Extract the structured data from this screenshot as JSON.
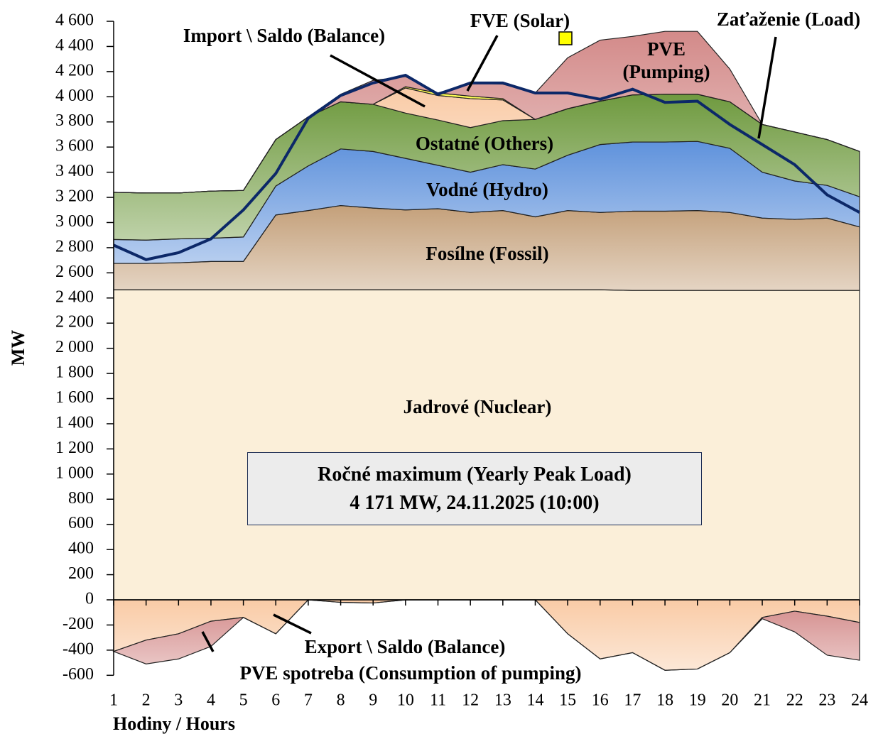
{
  "chart_data": {
    "type": "area",
    "y_label": "MW",
    "x_label": "Hodiny / Hours",
    "x": [
      1,
      2,
      3,
      4,
      5,
      6,
      7,
      8,
      9,
      10,
      11,
      12,
      13,
      14,
      15,
      16,
      17,
      18,
      19,
      20,
      21,
      22,
      23,
      24
    ],
    "xlim": [
      1,
      24
    ],
    "xticks": [
      1,
      2,
      3,
      4,
      5,
      6,
      7,
      8,
      9,
      10,
      11,
      12,
      13,
      14,
      15,
      16,
      17,
      18,
      19,
      20,
      21,
      22,
      23,
      24
    ],
    "ylim": [
      -600,
      4600
    ],
    "yticks": [
      -600,
      -400,
      -200,
      0,
      200,
      400,
      600,
      800,
      {
        "value": 1000,
        "label": "1 000"
      },
      {
        "value": 1200,
        "label": "1 200"
      },
      {
        "value": 1400,
        "label": "1 400"
      },
      {
        "value": 1600,
        "label": "1 600"
      },
      {
        "value": 1800,
        "label": "1 800"
      },
      {
        "value": 2000,
        "label": "2 000"
      },
      {
        "value": 2200,
        "label": "2 200"
      },
      {
        "value": 2400,
        "label": "2 400"
      },
      {
        "value": 2600,
        "label": "2 600"
      },
      {
        "value": 2800,
        "label": "2 800"
      },
      {
        "value": 3000,
        "label": "3 000"
      },
      {
        "value": 3200,
        "label": "3 200"
      },
      {
        "value": 3400,
        "label": "3 400"
      },
      {
        "value": 3600,
        "label": "3 600"
      },
      {
        "value": 3800,
        "label": "3 800"
      },
      {
        "value": 4000,
        "label": "4 000"
      },
      {
        "value": 4200,
        "label": "4 200"
      },
      {
        "value": 4400,
        "label": "4 400"
      },
      {
        "value": 4600,
        "label": "4 600"
      }
    ],
    "series": [
      {
        "name": "Jadrové (Nuclear)",
        "color": "#fbefd9",
        "values": [
          2465,
          2465,
          2465,
          2465,
          2465,
          2465,
          2465,
          2465,
          2465,
          2465,
          2465,
          2465,
          2465,
          2465,
          2465,
          2465,
          2460,
          2460,
          2460,
          2460,
          2460,
          2460,
          2460,
          2460
        ]
      },
      {
        "name": "Fosílne (Fossil)",
        "color": "#c4a07a",
        "values": [
          210,
          210,
          215,
          225,
          225,
          595,
          630,
          670,
          650,
          635,
          645,
          615,
          630,
          580,
          630,
          615,
          630,
          630,
          635,
          620,
          575,
          565,
          575,
          505
        ]
      },
      {
        "name": "Vodné (Hydro)",
        "color": "#5f92dc",
        "values": [
          190,
          185,
          190,
          185,
          195,
          230,
          355,
          450,
          450,
          410,
          345,
          320,
          365,
          380,
          440,
          540,
          550,
          550,
          550,
          510,
          365,
          305,
          260,
          240
        ]
      },
      {
        "name": "Ostatné (Others)",
        "color": "#6f9a3f",
        "values": [
          375,
          375,
          365,
          375,
          370,
          370,
          390,
          375,
          375,
          360,
          360,
          355,
          350,
          395,
          370,
          345,
          375,
          380,
          375,
          370,
          380,
          390,
          365,
          360
        ]
      },
      {
        "name": "Import \\ Saldo (Balance)",
        "color": "#f9cba6",
        "values": [
          0,
          0,
          0,
          0,
          0,
          0,
          0,
          0,
          0,
          200,
          195,
          230,
          165,
          0,
          0,
          0,
          0,
          0,
          0,
          0,
          0,
          0,
          0,
          0
        ]
      },
      {
        "name": "FVE (Solar)",
        "color": "#ffff4d",
        "values": [
          0,
          0,
          0,
          0,
          0,
          0,
          0,
          0,
          0,
          10,
          20,
          20,
          10,
          0,
          0,
          0,
          0,
          0,
          0,
          0,
          0,
          0,
          0,
          0
        ]
      },
      {
        "name": "PVE (Pumping)",
        "color": "#d38a89",
        "values": [
          0,
          0,
          0,
          0,
          0,
          0,
          0,
          60,
          190,
          80,
          0,
          105,
          115,
          210,
          405,
          485,
          465,
          500,
          500,
          260,
          0,
          0,
          0,
          0
        ]
      }
    ],
    "negative_series": [
      {
        "name": "Export \\ Saldo (Balance)",
        "color": "#f9cba6",
        "values": [
          -410,
          -320,
          -270,
          -170,
          -140,
          -270,
          0,
          -20,
          -25,
          0,
          0,
          0,
          0,
          0,
          -270,
          -470,
          -420,
          -560,
          -550,
          -420,
          -140,
          -90,
          -130,
          -180
        ]
      },
      {
        "name": "PVE spotreba (Consumption of pumping)",
        "color": "#d38a89",
        "values": [
          0,
          -190,
          -200,
          -200,
          0,
          0,
          0,
          0,
          0,
          0,
          0,
          0,
          0,
          0,
          0,
          0,
          0,
          0,
          0,
          0,
          -10,
          -165,
          -310,
          -300
        ]
      }
    ],
    "line": {
      "name": "Zaťaženie (Load)",
      "color": "#0c2868",
      "values": [
        2820,
        2705,
        2760,
        2870,
        3100,
        3390,
        3830,
        4010,
        4110,
        4171,
        4020,
        4110,
        4110,
        4030,
        4030,
        3980,
        4060,
        3955,
        3965,
        3780,
        3620,
        3460,
        3220,
        3080
      ]
    },
    "annotation": [
      "Ročné maximum (Yearly Peak Load)",
      "4 171 MW, 24.11.2025 (10:00)"
    ]
  }
}
